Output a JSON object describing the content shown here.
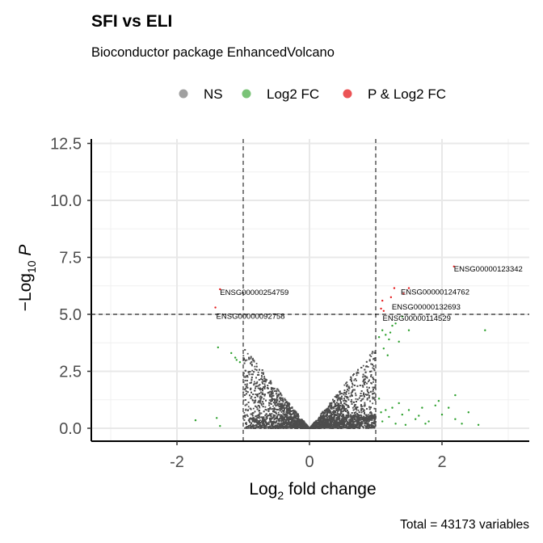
{
  "chart_data": {
    "type": "scatter",
    "title": "SFI vs ELI",
    "subtitle": "Bioconductor package EnhancedVolcano",
    "xlabel": "Log2 fold change",
    "ylabel": "-Log10 P",
    "caption": "Total = 43173 variables",
    "xlim": [
      -3.2,
      3.3
    ],
    "ylim": [
      0,
      12.5
    ],
    "x_ticks": [
      -2,
      0,
      2
    ],
    "x_tick_labels": [
      "-2",
      "0",
      "2"
    ],
    "y_ticks": [
      0,
      2.5,
      5,
      7.5,
      10,
      12.5
    ],
    "y_tick_labels": [
      "0.0",
      "2.5",
      "5.0",
      "7.5",
      "10.0",
      "12.5"
    ],
    "fc_cutoff": 1,
    "p_cutoff_log10": 5,
    "grid": true,
    "legend_position": "top",
    "legend": [
      {
        "label": "NS",
        "color": "#808080"
      },
      {
        "label": "Log2 FC",
        "color": "#4daf4a"
      },
      {
        "label": "P & Log2 FC",
        "color": "#e41a1c"
      }
    ],
    "series": [
      {
        "name": "NS",
        "color": "#4d4d4d",
        "points": []
      },
      {
        "name": "Log2 FC",
        "color": "#2ca02c",
        "points": [
          [
            -1.38,
            3.55
          ],
          [
            -1.1,
            3.0
          ],
          [
            -1.12,
            3.1
          ],
          [
            -1.18,
            3.3
          ],
          [
            -1.05,
            2.9
          ],
          [
            -1.35,
            0.1
          ],
          [
            -1.72,
            0.35
          ],
          [
            -1.4,
            0.45
          ],
          [
            1.05,
            4.0
          ],
          [
            1.1,
            4.3
          ],
          [
            1.15,
            4.1
          ],
          [
            1.2,
            3.9
          ],
          [
            1.25,
            4.5
          ],
          [
            1.3,
            4.6
          ],
          [
            1.12,
            3.5
          ],
          [
            1.18,
            3.2
          ],
          [
            1.22,
            4.2
          ],
          [
            1.35,
            3.8
          ],
          [
            1.4,
            4.9
          ],
          [
            1.5,
            4.3
          ],
          [
            2.65,
            4.3
          ],
          [
            1.1,
            0.3
          ],
          [
            1.2,
            0.5
          ],
          [
            1.3,
            0.2
          ],
          [
            1.4,
            0.6
          ],
          [
            1.5,
            0.8
          ],
          [
            1.6,
            0.4
          ],
          [
            1.7,
            0.9
          ],
          [
            1.8,
            0.3
          ],
          [
            1.9,
            1.0
          ],
          [
            2.0,
            0.6
          ],
          [
            2.1,
            0.9
          ],
          [
            2.2,
            0.4
          ],
          [
            2.3,
            0.2
          ],
          [
            2.4,
            0.7
          ],
          [
            2.55,
            0.15
          ],
          [
            2.2,
            1.45
          ],
          [
            1.95,
            1.2
          ],
          [
            1.35,
            1.1
          ],
          [
            1.15,
            0.8
          ],
          [
            1.25,
            0.9
          ],
          [
            1.45,
            0.15
          ],
          [
            1.65,
            0.55
          ],
          [
            1.75,
            0.2
          ],
          [
            1.05,
            1.3
          ],
          [
            1.08,
            0.7
          ]
        ]
      },
      {
        "name": "P & Log2 FC",
        "color": "#e41a1c",
        "points": [
          [
            -1.35,
            6.1
          ],
          [
            -1.42,
            5.3
          ],
          [
            1.08,
            5.25
          ],
          [
            1.12,
            5.15
          ],
          [
            1.28,
            6.15
          ],
          [
            1.5,
            6.15
          ],
          [
            1.42,
            5.9
          ],
          [
            2.18,
            7.1
          ],
          [
            1.1,
            5.6
          ],
          [
            1.23,
            5.75
          ]
        ]
      }
    ],
    "annotations": [
      {
        "text": "ENSG00000123342",
        "x": 2.18,
        "y": 7.1
      },
      {
        "text": "ENSG00000254759",
        "x": -1.35,
        "y": 6.1
      },
      {
        "text": "ENSG00000124762",
        "x": 1.28,
        "y": 6.15
      },
      {
        "text": "ENSG00000132693",
        "x": 1.12,
        "y": 5.25
      },
      {
        "text": "ENSG00000092758",
        "x": -1.42,
        "y": 5.3
      },
      {
        "text": "ENSG00000114529",
        "x": 1.08,
        "y": 5.15
      }
    ]
  }
}
